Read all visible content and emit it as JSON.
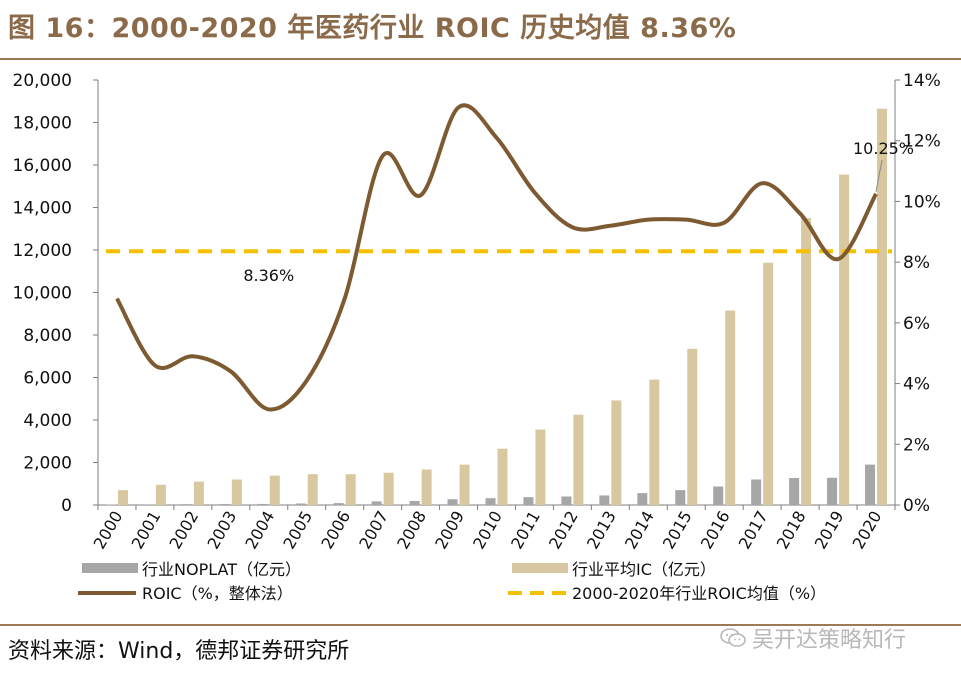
{
  "title": "图 16：2000-2020 年医药行业 ROIC 历史均值 8.36%",
  "source": "资料来源：Wind，德邦证券研究所",
  "watermark": "吴开达策略知行",
  "colors": {
    "noplat": "#A6A6A6",
    "ic": "#D9C7A0",
    "roic": "#7E5A32",
    "avg": "#F5C000",
    "title": "#8B6A4A",
    "rule": "#9C7A55"
  },
  "chart_data": {
    "type": "bar",
    "categories": [
      "2000",
      "2001",
      "2002",
      "2003",
      "2004",
      "2005",
      "2006",
      "2007",
      "2008",
      "2009",
      "2010",
      "2011",
      "2012",
      "2013",
      "2014",
      "2015",
      "2016",
      "2017",
      "2018",
      "2019",
      "2020"
    ],
    "series": [
      {
        "name": "行业NOPLAT（亿元）",
        "type": "bar",
        "axis": "left",
        "values": [
          20,
          30,
          40,
          45,
          50,
          70,
          90,
          170,
          190,
          270,
          320,
          370,
          400,
          450,
          560,
          700,
          870,
          1200,
          1270,
          1280,
          1900
        ]
      },
      {
        "name": "行业平均IC（亿元）",
        "type": "bar",
        "axis": "left",
        "values": [
          700,
          950,
          1100,
          1200,
          1380,
          1450,
          1450,
          1520,
          1670,
          1900,
          2650,
          3550,
          4250,
          4920,
          5900,
          7350,
          9150,
          11400,
          13500,
          15550,
          18650
        ]
      },
      {
        "name": "ROIC（%，整体法）",
        "type": "line",
        "axis": "right",
        "values": [
          6.8,
          4.6,
          4.9,
          4.4,
          3.15,
          4.1,
          6.8,
          11.5,
          10.2,
          13.1,
          12.1,
          10.3,
          9.15,
          9.2,
          9.4,
          9.4,
          9.3,
          10.6,
          9.6,
          8.1,
          10.25
        ]
      },
      {
        "name": "2000-2020年行业ROIC均值（%）",
        "type": "line",
        "style": "dashed",
        "axis": "right",
        "values": [
          8.36,
          8.36,
          8.36,
          8.36,
          8.36,
          8.36,
          8.36,
          8.36,
          8.36,
          8.36,
          8.36,
          8.36,
          8.36,
          8.36,
          8.36,
          8.36,
          8.36,
          8.36,
          8.36,
          8.36,
          8.36
        ]
      }
    ],
    "ylim_left": [
      0,
      20000
    ],
    "yticks_left": [
      "0",
      "2,000",
      "4,000",
      "6,000",
      "8,000",
      "10,000",
      "12,000",
      "14,000",
      "16,000",
      "18,000",
      "20,000"
    ],
    "ylim_right": [
      0,
      14
    ],
    "yticks_right": [
      "0%",
      "2%",
      "4%",
      "6%",
      "8%",
      "10%",
      "12%",
      "14%"
    ],
    "annotations": [
      {
        "text": "8.36%",
        "x": "2004",
        "y": 8.36,
        "axis": "right"
      },
      {
        "text": "10.25%",
        "x": "2020",
        "y": 10.25,
        "axis": "right"
      }
    ],
    "legend_position": "bottom"
  }
}
